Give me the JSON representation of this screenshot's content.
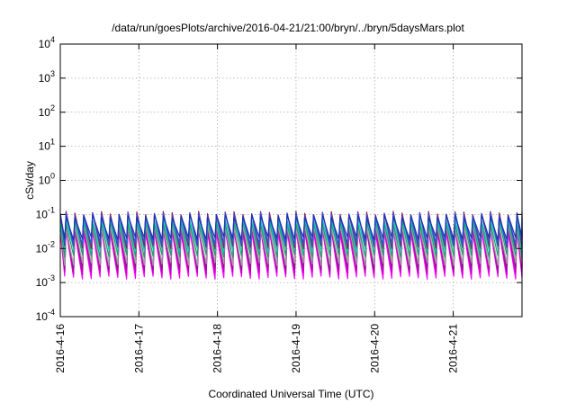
{
  "chart_data": {
    "type": "line",
    "title": "/data/run/goesPlots/archive/2016-04-21/21:00/bryn/../bryn/5daysMars.plot",
    "xlabel": "Coordinated Universal Time (UTC)",
    "ylabel": "cSv/day",
    "yscale": "log",
    "ylim": [
      0.0001,
      10000
    ],
    "xlim": [
      "2016-04-16",
      "2016-04-21T21:00"
    ],
    "x_ticks": [
      "2016-4-16",
      "2016-4-17",
      "2016-4-18",
      "2016-4-19",
      "2016-4-20",
      "2016-4-21"
    ],
    "y_ticks": [
      {
        "value": 0.0001,
        "base": "10",
        "exp": "-4"
      },
      {
        "value": 0.001,
        "base": "10",
        "exp": "-3"
      },
      {
        "value": 0.01,
        "base": "10",
        "exp": "-2"
      },
      {
        "value": 0.1,
        "base": "10",
        "exp": "-1"
      },
      {
        "value": 1,
        "base": "10",
        "exp": "0"
      },
      {
        "value": 10,
        "base": "10",
        "exp": "1"
      },
      {
        "value": 100,
        "base": "10",
        "exp": "2"
      },
      {
        "value": 1000,
        "base": "10",
        "exp": "3"
      },
      {
        "value": 10000,
        "base": "10",
        "exp": "4"
      }
    ],
    "grid": true,
    "period_hours": 2.7,
    "series": [
      {
        "color": "#ff00ff",
        "peak": 0.032,
        "trough": 0.0014
      },
      {
        "color": "#c000c0",
        "peak": 0.04,
        "trough": 0.0019
      },
      {
        "color": "#8b1a8b",
        "peak": 0.05,
        "trough": 0.0026
      },
      {
        "color": "#a0a0a0",
        "peak": 0.045,
        "trough": 0.0035
      },
      {
        "color": "#1e9e6e",
        "peak": 0.06,
        "trough": 0.006
      },
      {
        "color": "#00c8c8",
        "peak": 0.075,
        "trough": 0.009
      },
      {
        "color": "#8b2252",
        "peak": 0.11,
        "trough": 0.011
      },
      {
        "color": "#3050e0",
        "peak": 0.1,
        "trough": 0.014
      },
      {
        "color": "#2030b0",
        "peak": 0.09,
        "trough": 0.02
      }
    ]
  }
}
